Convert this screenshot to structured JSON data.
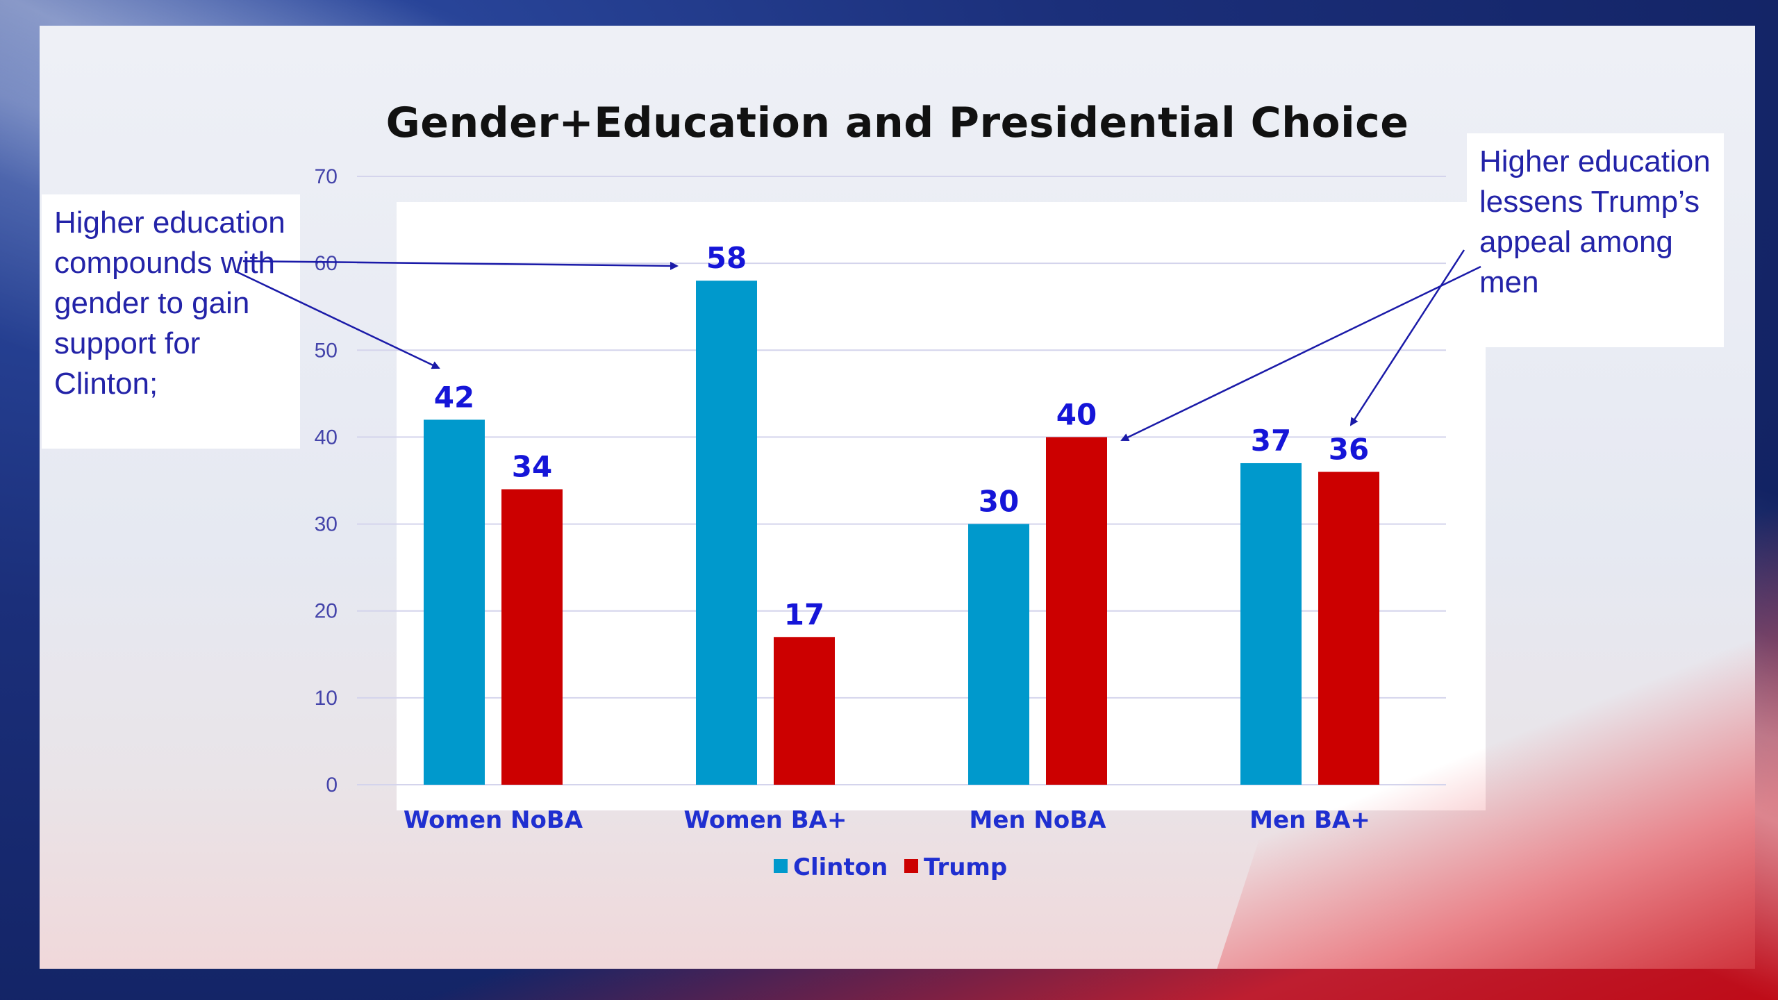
{
  "slide": {
    "title": "Gender+Education and Presidential Choice"
  },
  "annotations": {
    "left": "Higher education compounds with gender to gain support for Clinton;",
    "right": "Higher education lessens Trump’s appeal among men"
  },
  "colors": {
    "clinton": "#0099cc",
    "trump": "#cc0000",
    "gridline": "#d4d4ec",
    "arrow": "#1a1aa8"
  },
  "chart_data": {
    "type": "bar",
    "title": "Gender+Education and Presidential Choice",
    "categories": [
      "Women NoBA",
      "Women BA+",
      "Men NoBA",
      "Men BA+"
    ],
    "series": [
      {
        "name": "Clinton",
        "values": [
          42,
          58,
          30,
          37
        ]
      },
      {
        "name": "Trump",
        "values": [
          34,
          17,
          40,
          36
        ]
      }
    ],
    "ylim": [
      0,
      70
    ],
    "yticks": [
      0,
      10,
      20,
      30,
      40,
      50,
      60,
      70
    ],
    "grid": true,
    "legend": "bottom-center",
    "xlabel": "",
    "ylabel": ""
  }
}
